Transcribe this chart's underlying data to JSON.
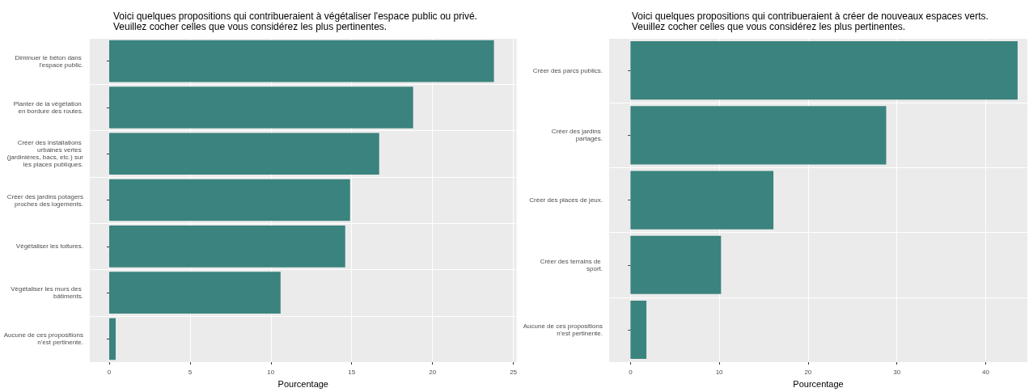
{
  "chart_data": [
    {
      "type": "bar",
      "orientation": "horizontal",
      "title": "Voici quelques propositions qui contribueraient à végétaliser l'espace public ou privé.\nVeuillez cocher celles que vous considérez les plus pertinentes.",
      "xlabel": "Pourcentage",
      "categories": [
        "Diminuer le béton dans l'espace public.",
        "Planter de la végétation en bordure des routes.",
        "Créer des installations urbaines vertes (jardinières, bacs, etc.) sur les places publiques.",
        "Créer des jardins potagers proches des logements.",
        "Végétaliser les toitures.",
        "Végétaliser les murs des bâtiments.",
        "Aucune de ces propositions n'est pertinente."
      ],
      "values": [
        23.8,
        18.8,
        16.7,
        14.9,
        14.6,
        10.6,
        0.4
      ],
      "color": "#3b837e",
      "xlim": [
        -1.2,
        25.2
      ],
      "xticks": [
        0,
        5,
        10,
        15,
        20,
        25
      ],
      "grid": true
    },
    {
      "type": "bar",
      "orientation": "horizontal",
      "title": "Voici quelques propositions qui contribueraient à créer de nouveaux espaces verts.\nVeuillez cocher celles que vous considérez les plus pertinentes.",
      "xlabel": "Pourcentage",
      "categories": [
        "Créer des parcs publics.",
        "Créer des jardins partagés.",
        "Créer des places de jeux.",
        "Créer des terrains de sport.",
        "Aucune de ces propositions n'est pertinente."
      ],
      "values": [
        43.6,
        28.8,
        16.1,
        10.2,
        1.8
      ],
      "color": "#3b837e",
      "xlim": [
        -2.4,
        44.7
      ],
      "xticks": [
        0,
        10,
        20,
        30,
        40
      ],
      "grid": true
    }
  ]
}
